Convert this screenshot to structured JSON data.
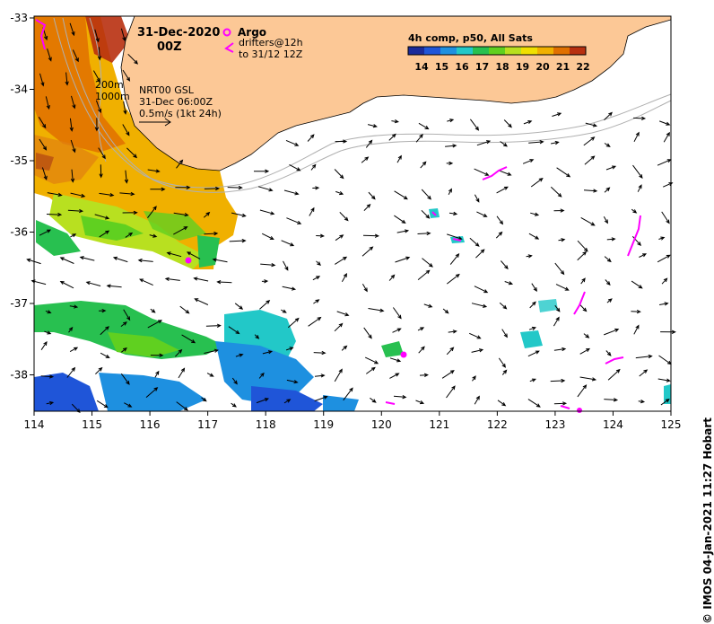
{
  "map": {
    "title_date": "31-Dec-2020",
    "title_time": "00Z",
    "argo_label": "Argo",
    "drifter_label_1": "drifters@12h",
    "drifter_label_2": "to 31/12 12Z",
    "colorbar_title": "4h comp, p50, All Sats",
    "colorbar_ticks": [
      "14",
      "15",
      "16",
      "17",
      "18",
      "19",
      "20",
      "21",
      "22"
    ],
    "colorbar_colors": [
      "#1a2a9a",
      "#1f55d8",
      "#1e90e0",
      "#22c8c8",
      "#28c050",
      "#60d020",
      "#b8e020",
      "#f0e000",
      "#f0b000",
      "#e07000",
      "#b83010"
    ],
    "contour_200": "200m",
    "contour_1000": "1000m",
    "source_line_1": "NRT00 GSL",
    "source_line_2": "31-Dec 06:00Z",
    "velocity_scale": "0.5m/s (1kt 24h)",
    "x_ticks": [
      "114",
      "115",
      "116",
      "117",
      "118",
      "119",
      "120",
      "121",
      "122",
      "123",
      "124",
      "125"
    ],
    "y_ticks": [
      "-33",
      "-34",
      "-35",
      "-36",
      "-37",
      "-38"
    ],
    "credit": "© IMOS 04-Jan-2021 11:27 Hobart",
    "land_color": "#fcc896"
  }
}
